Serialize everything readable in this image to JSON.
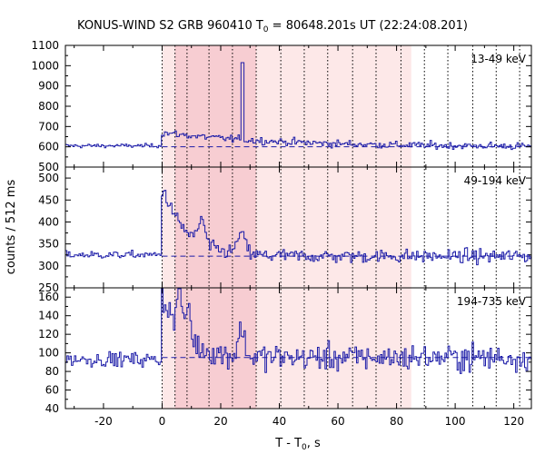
{
  "chart_data": {
    "type": "line",
    "title_main": "KONUS-WIND S2 GRB 960410 T",
    "title_sub": "0",
    "title_rest": " = 80648.201s UT (22:24:08.201)",
    "xlabel_main": "T - T",
    "xlabel_sub": "0",
    "xlabel_rest": ", s",
    "ylabel": "counts / 512 ms",
    "xlim": [
      -33,
      126
    ],
    "x_ticks": [
      -20,
      0,
      20,
      40,
      60,
      80,
      100,
      120
    ],
    "grid": false,
    "bin_width_s": 0.512,
    "trigger_time": 0,
    "shaded_intervals": [
      {
        "start": 0,
        "end": 85,
        "color": "#fde8e8"
      },
      {
        "start": 4.4,
        "end": 32.1,
        "color": "#f7cdd2"
      }
    ],
    "dotted_lines": [
      0,
      4.4,
      8.5,
      16.0,
      24.0,
      32.1,
      40.5,
      48.5,
      56.5,
      65.0,
      73.0,
      81.5,
      89.5,
      97.5,
      106.0,
      114.0,
      122.0
    ],
    "line_color": "#1c1ca8",
    "panels": [
      {
        "name": "13-49 keV",
        "ylim": [
          500,
          1100
        ],
        "y_ticks": [
          500,
          600,
          700,
          800,
          900,
          1000,
          1100
        ],
        "background": 600,
        "pre_trigger_level": 605,
        "peak_time": 0,
        "peak_amplitude": 70,
        "decay_s": 40,
        "spike": {
          "time": 27.5,
          "value": 1015
        },
        "noise": 15,
        "points": [
          [
            -30,
            610
          ],
          [
            -10,
            605
          ],
          [
            0,
            690
          ],
          [
            5,
            675
          ],
          [
            15,
            640
          ],
          [
            27.5,
            1015
          ],
          [
            40,
            620
          ],
          [
            80,
            605
          ],
          [
            120,
            600
          ]
        ]
      },
      {
        "name": "49-194 keV",
        "ylim": [
          250,
          525
        ],
        "y_ticks": [
          250,
          300,
          350,
          400,
          450,
          500
        ],
        "background": 322,
        "pre_trigger_level": 325,
        "peak_time": 0.5,
        "peak_amplitude": 150,
        "decay_s": 8,
        "bumps": [
          {
            "t": 13.5,
            "a": 55,
            "w": 1.6
          },
          {
            "t": 27,
            "a": 45,
            "w": 2
          }
        ],
        "noise": 13,
        "points": [
          [
            -30,
            325
          ],
          [
            -5,
            320
          ],
          [
            0.5,
            480
          ],
          [
            3,
            440
          ],
          [
            8,
            400
          ],
          [
            13.5,
            380
          ],
          [
            27,
            365
          ],
          [
            40,
            335
          ],
          [
            80,
            325
          ],
          [
            120,
            322
          ]
        ]
      },
      {
        "name": "194-735 keV",
        "ylim": [
          40,
          170
        ],
        "y_ticks": [
          40,
          60,
          80,
          100,
          120,
          140,
          160
        ],
        "background": 95,
        "pre_trigger_level": 93,
        "peak_time": 0.5,
        "peak_amplitude": 65,
        "decay_s": 7,
        "bumps": [
          {
            "t": 6,
            "a": 45,
            "w": 1.2
          },
          {
            "t": 9,
            "a": 40,
            "w": 1
          },
          {
            "t": 27,
            "a": 30,
            "w": 1.5
          }
        ],
        "noise": 12,
        "points": [
          [
            -30,
            93
          ],
          [
            -5,
            94
          ],
          [
            0.5,
            160
          ],
          [
            6,
            160
          ],
          [
            9,
            150
          ],
          [
            15,
            115
          ],
          [
            27,
            125
          ],
          [
            40,
            105
          ],
          [
            80,
            98
          ],
          [
            120,
            95
          ]
        ]
      }
    ]
  }
}
